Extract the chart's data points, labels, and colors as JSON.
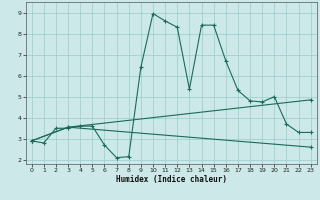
{
  "xlabel": "Humidex (Indice chaleur)",
  "bg_color": "#cce8e8",
  "line_color": "#1a6b5a",
  "grid_color": "#99cccc",
  "xlim": [
    -0.5,
    23.5
  ],
  "ylim": [
    1.8,
    9.5
  ],
  "xticks": [
    0,
    1,
    2,
    3,
    4,
    5,
    6,
    7,
    8,
    9,
    10,
    11,
    12,
    13,
    14,
    15,
    16,
    17,
    18,
    19,
    20,
    21,
    22,
    23
  ],
  "yticks": [
    2,
    3,
    4,
    5,
    6,
    7,
    8,
    9
  ],
  "line1_x": [
    0,
    1,
    2,
    3,
    4,
    5,
    6,
    7,
    8,
    9,
    10,
    11,
    12,
    13,
    14,
    15,
    16,
    17,
    18,
    19,
    20,
    21,
    22,
    23
  ],
  "line1_y": [
    2.9,
    2.8,
    3.5,
    3.5,
    3.6,
    3.6,
    2.7,
    2.1,
    2.15,
    6.4,
    8.95,
    8.6,
    8.3,
    5.35,
    8.4,
    8.4,
    6.7,
    5.3,
    4.8,
    4.75,
    5.0,
    3.7,
    3.3,
    3.3
  ],
  "line2_x": [
    0,
    3,
    23
  ],
  "line2_y": [
    2.9,
    3.55,
    2.6
  ],
  "line3_x": [
    0,
    3,
    23
  ],
  "line3_y": [
    2.9,
    3.55,
    4.85
  ]
}
